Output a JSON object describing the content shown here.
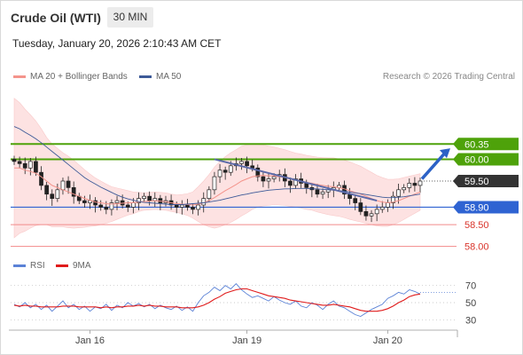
{
  "header": {
    "title": "Crude Oil (WTI)",
    "timeframe": "30 MIN",
    "datetime": "Tuesday, January 20, 2026 2:10:43 AM CET"
  },
  "legend": {
    "items": [
      {
        "label": "MA 20 + Bollinger Bands",
        "color": "#f4948c"
      },
      {
        "label": "MA 50",
        "color": "#3d5a98"
      }
    ],
    "credit": "Research © 2026 Trading Central"
  },
  "colors": {
    "resistance": "#4ea20a",
    "support": "#2f63d2",
    "lower_support": "#f28a8a",
    "current": "#333333",
    "bull_candle": "#ffffff",
    "bear_candle": "#222222",
    "bollinger": "#fde2e2",
    "rsi": "#5b82d6",
    "rsi_ma": "#e01b1b",
    "arrow": "#2c62c6"
  },
  "levels": [
    {
      "value": 60.35,
      "label": "60.35",
      "kind": "resistance"
    },
    {
      "value": 60.0,
      "label": "60.00",
      "kind": "resistance"
    },
    {
      "value": 59.5,
      "label": "59.50",
      "kind": "current"
    },
    {
      "value": 58.9,
      "label": "58.90",
      "kind": "support"
    },
    {
      "value": 58.5,
      "label": "58.50",
      "kind": "lower_support"
    },
    {
      "value": 58.0,
      "label": "58.00",
      "kind": "lower_support"
    }
  ],
  "rsi_panel": {
    "legend": [
      {
        "label": "RSI",
        "color": "#5b82d6"
      },
      {
        "label": "9MA",
        "color": "#e01b1b"
      }
    ],
    "ticks": [
      "70",
      "50",
      "30"
    ]
  },
  "x_axis": {
    "labels": [
      "Jan 16",
      "Jan 19",
      "Jan 20"
    ]
  },
  "chart_data": {
    "type": "line",
    "title": "Crude Oil (WTI)",
    "interval": "30 MIN",
    "price_range": [
      57.85,
      61.7
    ],
    "rsi_range": [
      20,
      80
    ],
    "x_labels": [
      "Jan 16",
      "Jan 19",
      "Jan 20"
    ],
    "price": [
      59.95,
      59.9,
      59.8,
      59.95,
      59.7,
      59.4,
      59.2,
      59.1,
      59.3,
      59.5,
      59.35,
      59.15,
      59.05,
      59.0,
      59.05,
      58.95,
      58.9,
      58.85,
      59.0,
      59.05,
      58.95,
      58.9,
      59.0,
      59.1,
      59.15,
      59.05,
      59.1,
      59.0,
      59.05,
      58.95,
      58.9,
      58.95,
      58.9,
      58.85,
      58.95,
      59.1,
      59.3,
      59.6,
      59.75,
      59.7,
      59.85,
      59.9,
      59.95,
      59.85,
      59.8,
      59.6,
      59.5,
      59.55,
      59.6,
      59.65,
      59.5,
      59.4,
      59.55,
      59.45,
      59.35,
      59.3,
      59.2,
      59.25,
      59.3,
      59.35,
      59.4,
      59.2,
      59.1,
      59.0,
      58.8,
      58.7,
      58.75,
      58.85,
      58.9,
      59.0,
      59.15,
      59.3,
      59.35,
      59.45,
      59.4,
      59.5
    ],
    "ma20": [
      59.8,
      59.8,
      59.75,
      59.72,
      59.68,
      59.6,
      59.5,
      59.4,
      59.35,
      59.3,
      59.25,
      59.2,
      59.15,
      59.1,
      59.06,
      59.02,
      59.0,
      58.98,
      58.97,
      58.98,
      58.99,
      59.0,
      59.0,
      59.02,
      59.03,
      59.04,
      59.05,
      59.04,
      59.03,
      59.0,
      58.98,
      58.97,
      58.96,
      58.95,
      58.97,
      59.0,
      59.05,
      59.12,
      59.2,
      59.28,
      59.35,
      59.42,
      59.5,
      59.55,
      59.6,
      59.62,
      59.63,
      59.62,
      59.62,
      59.6,
      59.58,
      59.55,
      59.52,
      59.5,
      59.47,
      59.45,
      59.42,
      59.4,
      59.38,
      59.37,
      59.35,
      59.32,
      59.28,
      59.24,
      59.2,
      59.15,
      59.1,
      59.05,
      59.02,
      59.0,
      59.02,
      59.05,
      59.1,
      59.15,
      59.2,
      59.25
    ],
    "ma50": [
      60.75,
      60.7,
      60.62,
      60.55,
      60.47,
      60.38,
      60.28,
      60.18,
      60.08,
      59.98,
      59.88,
      59.78,
      59.68,
      59.58,
      59.5,
      59.43,
      59.36,
      59.3,
      59.24,
      59.18,
      59.13,
      59.09,
      59.06,
      59.03,
      59.01,
      59.0,
      58.99,
      58.98,
      58.97,
      58.96,
      58.96,
      58.96,
      58.97,
      58.98,
      58.99,
      59.0,
      59.02,
      59.04,
      59.06,
      59.09,
      59.12,
      59.15,
      59.18,
      59.2,
      59.23,
      59.25,
      59.27,
      59.29,
      59.3,
      59.31,
      59.32,
      59.32,
      59.33,
      59.33,
      59.33,
      59.32,
      59.32,
      59.31,
      59.3,
      59.29,
      59.28,
      59.27,
      59.25,
      59.23,
      59.21,
      59.19,
      59.17,
      59.15,
      59.13,
      59.12,
      59.12,
      59.13,
      59.14,
      59.16,
      59.18,
      59.2
    ],
    "bb_width": [
      1.6,
      1.5,
      1.4,
      1.3,
      1.2,
      1.1,
      1.0,
      0.95,
      0.9,
      0.85,
      0.82,
      0.78,
      0.72,
      0.66,
      0.6,
      0.55,
      0.5,
      0.45,
      0.4,
      0.36,
      0.32,
      0.28,
      0.25,
      0.22,
      0.2,
      0.2,
      0.2,
      0.2,
      0.2,
      0.2,
      0.2,
      0.22,
      0.25,
      0.3,
      0.4,
      0.5,
      0.6,
      0.7,
      0.75,
      0.78,
      0.8,
      0.8,
      0.8,
      0.78,
      0.75,
      0.72,
      0.7,
      0.68,
      0.66,
      0.65,
      0.64,
      0.63,
      0.62,
      0.62,
      0.62,
      0.62,
      0.63,
      0.64,
      0.65,
      0.66,
      0.66,
      0.66,
      0.66,
      0.65,
      0.64,
      0.62,
      0.6,
      0.58,
      0.56,
      0.54,
      0.52,
      0.5,
      0.48,
      0.46,
      0.44,
      0.42
    ],
    "rsi": [
      48,
      45,
      50,
      44,
      48,
      42,
      47,
      40,
      46,
      52,
      44,
      48,
      42,
      46,
      40,
      45,
      43,
      48,
      41,
      47,
      44,
      50,
      46,
      49,
      45,
      48,
      43,
      47,
      44,
      42,
      46,
      41,
      45,
      40,
      50,
      58,
      62,
      68,
      64,
      70,
      66,
      72,
      65,
      60,
      56,
      58,
      55,
      52,
      57,
      53,
      50,
      48,
      52,
      46,
      44,
      50,
      47,
      42,
      48,
      52,
      46,
      44,
      40,
      36,
      34,
      38,
      42,
      45,
      48,
      55,
      58,
      62,
      60,
      65,
      63,
      60
    ],
    "rsi_ma": [
      47,
      46,
      47,
      46,
      46,
      45,
      45,
      45,
      45,
      46,
      46,
      46,
      45,
      45,
      45,
      45,
      44,
      45,
      44,
      45,
      45,
      46,
      46,
      47,
      46,
      47,
      46,
      46,
      45,
      45,
      45,
      44,
      44,
      44,
      45,
      47,
      50,
      54,
      57,
      61,
      63,
      65,
      66,
      66,
      64,
      62,
      60,
      58,
      57,
      56,
      55,
      53,
      52,
      51,
      50,
      49,
      48,
      47,
      47,
      48,
      47,
      46,
      45,
      43,
      41,
      40,
      40,
      40,
      41,
      43,
      46,
      50,
      53,
      57,
      59,
      60
    ],
    "series": [
      {
        "name": "MA 20 + Bollinger Bands"
      },
      {
        "name": "MA 50"
      },
      {
        "name": "RSI"
      },
      {
        "name": "9MA"
      }
    ]
  }
}
